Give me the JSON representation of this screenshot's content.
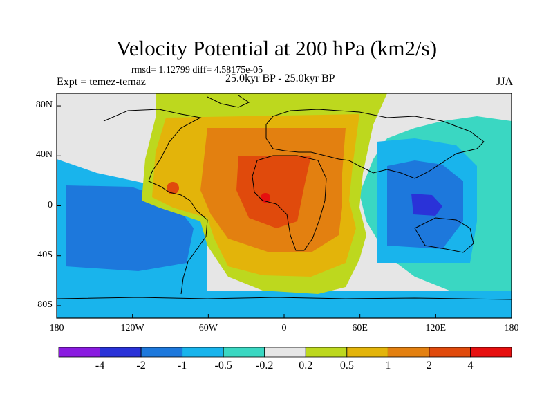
{
  "title": "Velocity Potential at 200 hPa (km2/s)",
  "stats_line": "rmsd= 1.12799 diff= 4.58175e-05",
  "left_label": "Expt = temez-temaz",
  "center_label": "25.0kyr BP - 25.0kyr BP",
  "right_label": "JJA",
  "lat_ticks": [
    "80N",
    "40N",
    "0",
    "40S",
    "80S"
  ],
  "lon_ticks": [
    "180",
    "120W",
    "60W",
    "0",
    "60E",
    "120E",
    "180"
  ],
  "colorbar": {
    "labels": [
      "-4",
      "-2",
      "-1",
      "-0.5",
      "-0.2",
      "0.2",
      "0.5",
      "1",
      "2",
      "4"
    ],
    "colors": [
      "#8a1be0",
      "#2a32d8",
      "#1d78dc",
      "#19b4ec",
      "#3ad7c2",
      "#e6e6e6",
      "#bdd81e",
      "#e3b40a",
      "#e38010",
      "#e04a0c",
      "#e60f0f"
    ]
  },
  "fill_levels": {
    "land_rim": "#e6e6e6",
    "warm1": "#bdd81e",
    "warm2": "#e3b40a",
    "warm3": "#e38010",
    "warm4": "#e04a0c",
    "warm5": "#e60f0f",
    "cool1": "#3ad7c2",
    "cool2": "#19b4ec",
    "cool3": "#1d78dc",
    "cool4": "#2a32d8"
  }
}
